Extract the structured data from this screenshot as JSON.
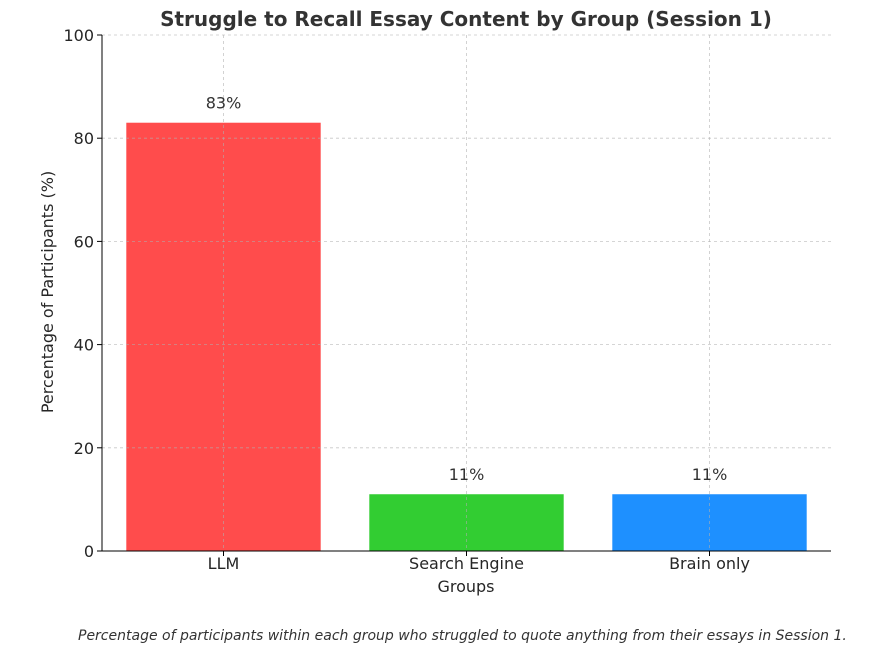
{
  "chart_data": {
    "type": "bar",
    "title": "Struggle to Recall Essay Content by Group (Session 1)",
    "xlabel": "Groups",
    "ylabel": "Percentage of Participants (%)",
    "categories": [
      "LLM",
      "Search Engine",
      "Brain only"
    ],
    "values": [
      83,
      11,
      11
    ],
    "data_labels": [
      "83%",
      "11%",
      "11%"
    ],
    "colors": [
      "#ff4c4c",
      "#32cd32",
      "#1e90ff"
    ],
    "ylim": [
      0,
      100
    ],
    "yticks": [
      0,
      20,
      40,
      60,
      80,
      100
    ],
    "grid": true,
    "caption": "Percentage of participants within each group who struggled to quote anything from their essays in Session 1."
  }
}
